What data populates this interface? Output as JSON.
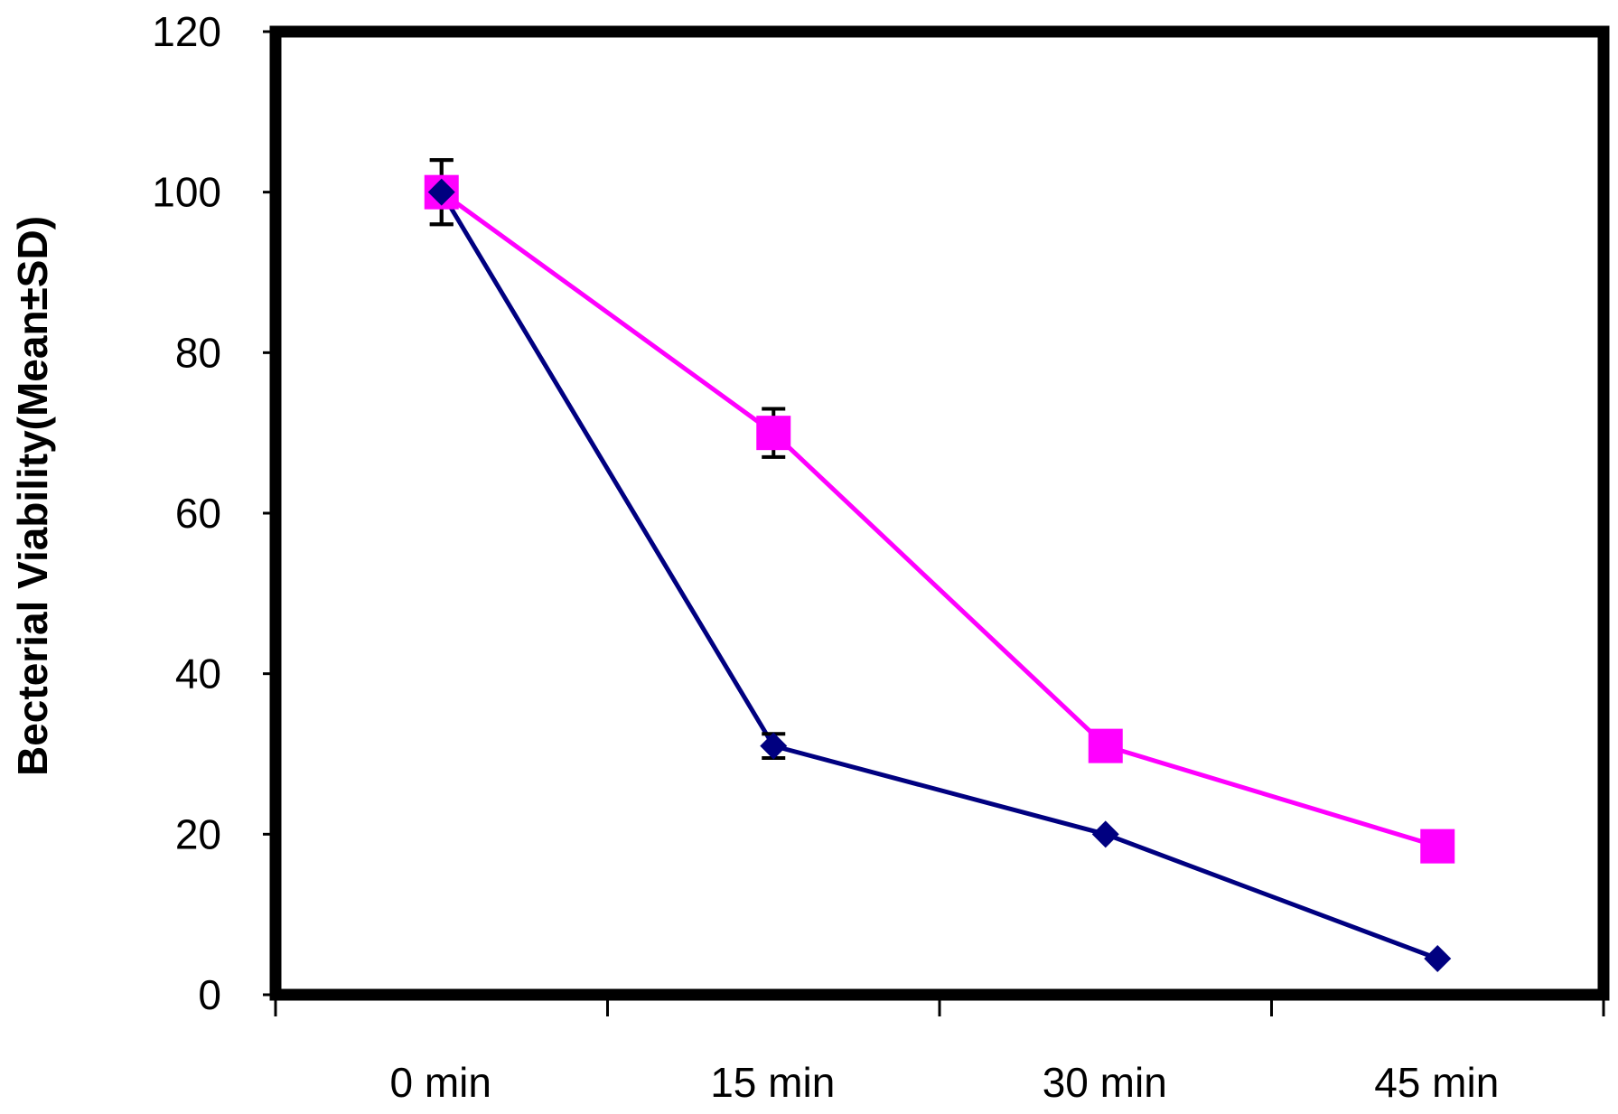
{
  "chart_data": {
    "type": "line",
    "title": "",
    "xlabel": "",
    "ylabel": "Becterial Viability(Mean±SD)",
    "categories": [
      "0 min",
      "15 min",
      "30 min",
      "45 min"
    ],
    "ylim": [
      0,
      120
    ],
    "yticks": [
      0,
      20,
      40,
      60,
      80,
      100,
      120
    ],
    "grid": false,
    "legend": "none",
    "series": [
      {
        "marker": "square",
        "color": "#ff00ff",
        "values": [
          100,
          70,
          31,
          18.5
        ],
        "errors": [
          4,
          3,
          0,
          0
        ]
      },
      {
        "marker": "diamond",
        "color": "#000080",
        "values": [
          100,
          31,
          20,
          4.5
        ],
        "errors": [
          4,
          1.5,
          0,
          0
        ]
      }
    ]
  }
}
